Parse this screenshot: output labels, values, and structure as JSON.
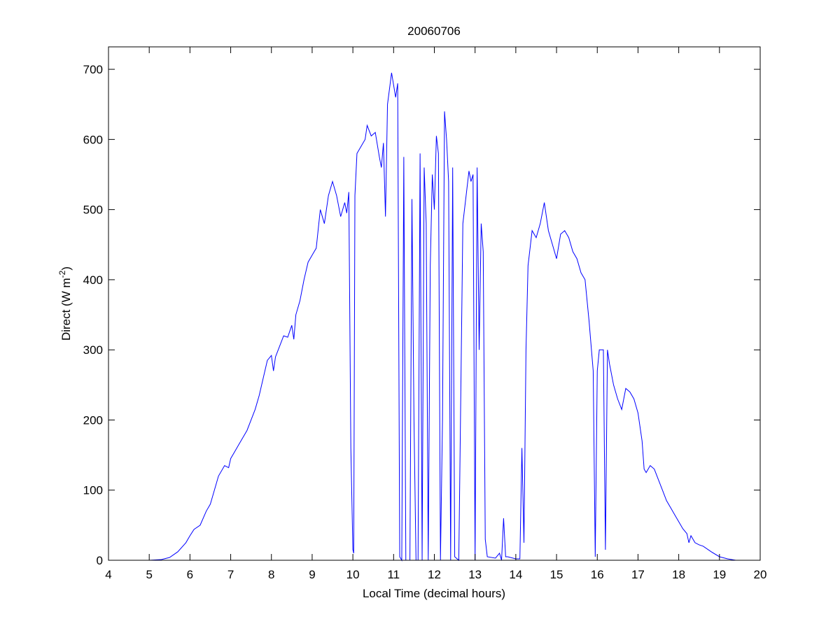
{
  "chart_data": {
    "type": "line",
    "title": "20060706",
    "xlabel": "Local Time (decimal hours)",
    "ylabel": [
      "Direct (W m",
      "-2",
      ")"
    ],
    "color": "#0000ff",
    "xlim": [
      4,
      20
    ],
    "xticks": [
      4,
      5,
      6,
      7,
      8,
      9,
      10,
      11,
      12,
      13,
      14,
      15,
      16,
      17,
      18,
      19,
      20
    ],
    "ylim": [
      0,
      732
    ],
    "yticks": [
      0,
      100,
      200,
      300,
      400,
      500,
      600,
      700
    ],
    "x": [
      5.0,
      5.3,
      5.5,
      5.7,
      5.9,
      6.0,
      6.1,
      6.25,
      6.4,
      6.5,
      6.6,
      6.7,
      6.85,
      6.95,
      7.0,
      7.1,
      7.2,
      7.3,
      7.4,
      7.5,
      7.6,
      7.7,
      7.8,
      7.9,
      8.0,
      8.05,
      8.1,
      8.2,
      8.3,
      8.4,
      8.5,
      8.55,
      8.6,
      8.7,
      8.8,
      8.9,
      9.0,
      9.1,
      9.2,
      9.3,
      9.4,
      9.5,
      9.6,
      9.7,
      9.8,
      9.85,
      9.9,
      9.95,
      10.0,
      10.02,
      10.05,
      10.1,
      10.2,
      10.3,
      10.35,
      10.45,
      10.55,
      10.65,
      10.7,
      10.75,
      10.8,
      10.85,
      10.95,
      11.05,
      11.1,
      11.15,
      11.2,
      11.25,
      11.3,
      11.4,
      11.45,
      11.5,
      11.55,
      11.6,
      11.65,
      11.7,
      11.75,
      11.8,
      11.85,
      11.9,
      11.95,
      12.0,
      12.05,
      12.1,
      12.15,
      12.2,
      12.25,
      12.3,
      12.35,
      12.4,
      12.45,
      12.5,
      12.6,
      12.7,
      12.8,
      12.85,
      12.9,
      12.95,
      13.0,
      13.05,
      13.1,
      13.15,
      13.2,
      13.25,
      13.3,
      13.5,
      13.6,
      13.65,
      13.7,
      13.75,
      13.8,
      14.0,
      14.1,
      14.15,
      14.2,
      14.25,
      14.3,
      14.4,
      14.5,
      14.6,
      14.7,
      14.8,
      14.9,
      15.0,
      15.1,
      15.2,
      15.3,
      15.4,
      15.5,
      15.6,
      15.7,
      15.8,
      15.9,
      15.95,
      16.0,
      16.05,
      16.1,
      16.15,
      16.2,
      16.25,
      16.3,
      16.4,
      16.5,
      16.6,
      16.7,
      16.8,
      16.9,
      17.0,
      17.1,
      17.15,
      17.2,
      17.3,
      17.4,
      17.5,
      17.6,
      17.7,
      17.8,
      17.9,
      18.0,
      18.1,
      18.2,
      18.25,
      18.3,
      18.4,
      18.5,
      18.6,
      18.8,
      19.0,
      19.2,
      19.4,
      19.5
    ],
    "values": [
      0,
      1,
      4,
      12,
      25,
      35,
      44,
      50,
      70,
      80,
      100,
      120,
      135,
      132,
      145,
      155,
      165,
      175,
      185,
      200,
      215,
      235,
      260,
      285,
      292,
      270,
      290,
      305,
      320,
      318,
      335,
      315,
      350,
      370,
      400,
      425,
      435,
      445,
      500,
      480,
      520,
      540,
      520,
      490,
      510,
      495,
      525,
      160,
      15,
      10,
      520,
      580,
      590,
      600,
      620,
      605,
      610,
      575,
      560,
      595,
      490,
      650,
      695,
      660,
      680,
      5,
      0,
      575,
      0,
      0,
      515,
      200,
      0,
      0,
      580,
      0,
      560,
      480,
      0,
      420,
      550,
      500,
      605,
      580,
      0,
      200,
      640,
      600,
      540,
      0,
      560,
      5,
      0,
      480,
      530,
      555,
      540,
      550,
      0,
      560,
      300,
      480,
      440,
      30,
      5,
      3,
      10,
      0,
      60,
      5,
      5,
      2,
      2,
      160,
      25,
      300,
      420,
      470,
      460,
      480,
      510,
      470,
      450,
      430,
      465,
      470,
      460,
      440,
      430,
      410,
      400,
      340,
      270,
      5,
      270,
      300,
      300,
      300,
      15,
      300,
      280,
      250,
      230,
      215,
      245,
      240,
      230,
      210,
      170,
      130,
      125,
      135,
      130,
      115,
      100,
      85,
      75,
      65,
      55,
      45,
      38,
      25,
      35,
      25,
      22,
      20,
      12,
      5,
      2,
      0,
      0
    ]
  }
}
